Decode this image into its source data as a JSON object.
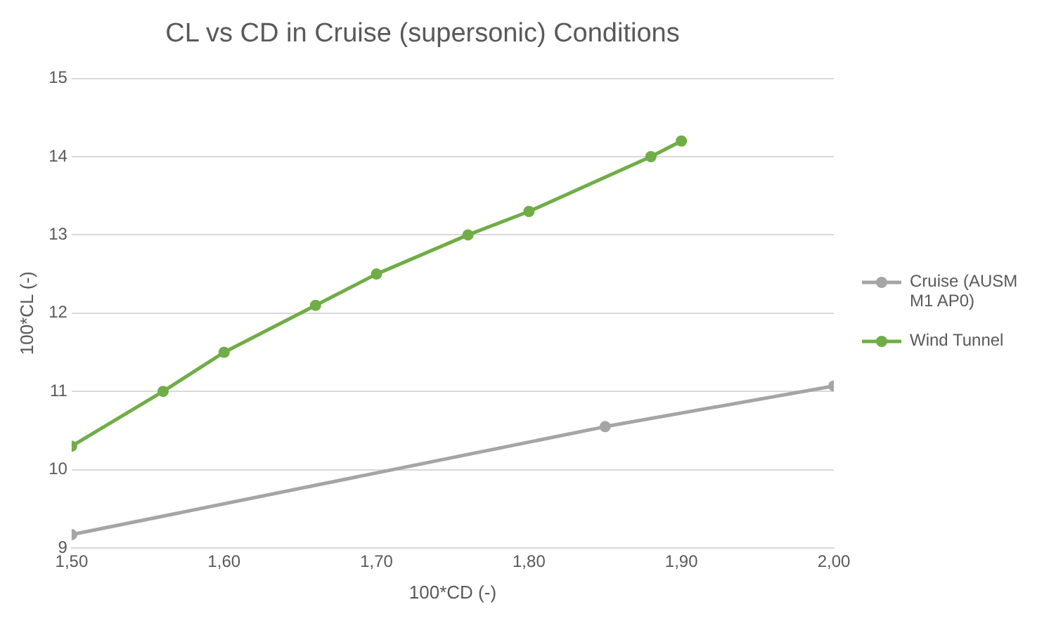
{
  "chart_data": {
    "type": "line",
    "title": "CL vs CD in Cruise (supersonic) Conditions",
    "xlabel": "100*CD (-)",
    "ylabel": "100*CL (-)",
    "series": [
      {
        "name": "Cruise (AUSM M1 AP0)",
        "color": "#a5a5a5",
        "x": [
          1.5,
          1.85,
          2.0
        ],
        "values": [
          9.17,
          10.55,
          11.07
        ]
      },
      {
        "name": "Wind Tunnel",
        "color": "#70ad47",
        "x": [
          1.5,
          1.56,
          1.6,
          1.66,
          1.7,
          1.76,
          1.8,
          1.88,
          1.9
        ],
        "values": [
          10.3,
          11.0,
          11.5,
          12.1,
          12.5,
          13.0,
          13.3,
          14.0,
          14.2
        ]
      }
    ],
    "xlim": [
      1.5,
      2.0
    ],
    "xticks": [
      {
        "value": 1.5,
        "label": "1,50"
      },
      {
        "value": 1.6,
        "label": "1,60"
      },
      {
        "value": 1.7,
        "label": "1,70"
      },
      {
        "value": 1.8,
        "label": "1,80"
      },
      {
        "value": 1.9,
        "label": "1,90"
      },
      {
        "value": 2.0,
        "label": "2,00"
      }
    ],
    "ylim": [
      9,
      15
    ],
    "yticks": [
      9,
      10,
      11,
      12,
      13,
      14,
      15
    ],
    "grid": "y",
    "legend": "right",
    "marker": "circle",
    "line_style": "solid"
  }
}
